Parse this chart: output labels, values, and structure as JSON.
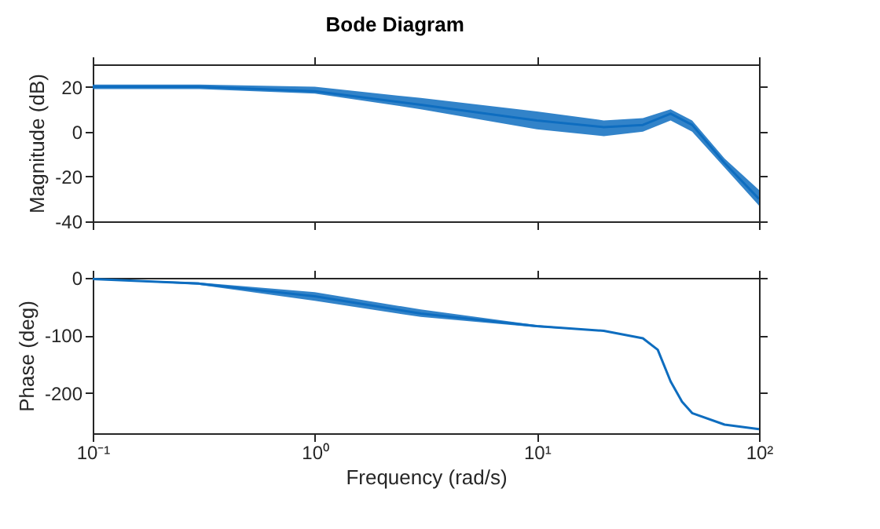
{
  "chart_data": [
    {
      "type": "line",
      "title": "Bode Diagram",
      "ylabel": "Magnitude (dB)",
      "log": "x",
      "grid": false,
      "line_style": "solid",
      "tick_labels": "y",
      "x": [
        0.1,
        0.3,
        1,
        3,
        10,
        20,
        30,
        40,
        50,
        70,
        100
      ],
      "xlim": [
        0.1,
        100
      ],
      "xticks": [
        {
          "value": 0.1,
          "label": null
        },
        {
          "value": 1,
          "label": null
        },
        {
          "value": 10,
          "label": null
        },
        {
          "value": 100,
          "label": null
        }
      ],
      "ylim": [
        -40,
        30
      ],
      "yticks": [
        -40,
        -20,
        0,
        20
      ],
      "series": [
        {
          "color": "#0e6dbf",
          "values": [
            20,
            20,
            18,
            12,
            5,
            2,
            3,
            8,
            3,
            -14,
            -30
          ],
          "lower": [
            19,
            19,
            17,
            10,
            1,
            -2,
            0,
            5,
            0,
            -16,
            -33
          ],
          "upper": [
            21,
            21,
            20,
            15,
            9,
            5,
            6,
            10,
            5,
            -12,
            -26
          ]
        }
      ]
    },
    {
      "type": "line",
      "xlabel": "Frequency (rad/s)",
      "ylabel": "Phase (deg)",
      "log": "x",
      "grid": false,
      "line_style": "solid",
      "x": [
        0.1,
        0.3,
        1,
        3,
        10,
        20,
        30,
        35,
        40,
        45,
        50,
        70,
        100
      ],
      "xlim": [
        0.1,
        100
      ],
      "xticks": [
        {
          "value": 0.1,
          "label": "10⁻¹"
        },
        {
          "value": 1,
          "label": "10⁰"
        },
        {
          "value": 10,
          "label": "10¹"
        },
        {
          "value": 100,
          "label": "10²"
        }
      ],
      "ylim": [
        -270,
        0
      ],
      "yticks": [
        -200,
        -100,
        0
      ],
      "series": [
        {
          "color": "#0e6dbf",
          "values": [
            -2,
            -10,
            -32,
            -62,
            -84,
            -92,
            -105,
            -125,
            -180,
            -215,
            -235,
            -255,
            -263
          ],
          "lower": [
            -2,
            -12,
            -40,
            -68,
            -86,
            -92,
            -105,
            -125,
            -180,
            -215,
            -235,
            -255,
            -263
          ],
          "upper": [
            -2,
            -8,
            -25,
            -55,
            -82,
            -92,
            -105,
            -125,
            -180,
            -215,
            -235,
            -255,
            -263
          ]
        }
      ]
    }
  ]
}
